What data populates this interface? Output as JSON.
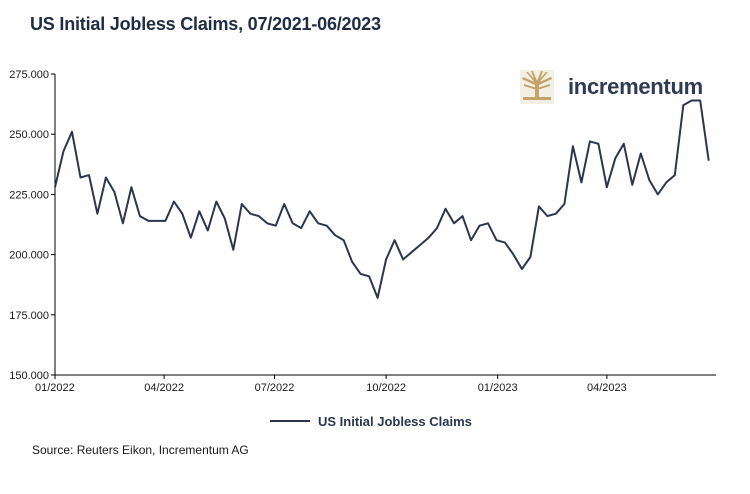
{
  "title": "US Initial Jobless Claims, 07/2021-06/2023",
  "source": "Source: Reuters Eikon, Incrementum AG",
  "logo": {
    "text": "incrementum",
    "icon": "tree-icon",
    "icon_color": "#c2a46a"
  },
  "chart_data": {
    "type": "line",
    "title": "US Initial Jobless Claims, 07/2021-06/2023",
    "xlabel": "",
    "ylabel": "",
    "ylim": [
      150000,
      275000
    ],
    "y_ticks": [
      150000,
      175000,
      200000,
      225000,
      250000,
      275000
    ],
    "y_tick_labels": [
      "150.000",
      "175.000",
      "200.000",
      "225.000",
      "250.000",
      "275.000"
    ],
    "x_range": [
      "2022-01-01",
      "2023-06-30"
    ],
    "x_ticks": [
      "2022-01-01",
      "2022-04-01",
      "2022-07-01",
      "2022-10-01",
      "2023-01-01",
      "2023-04-01"
    ],
    "x_tick_labels": [
      "01/2022",
      "04/2022",
      "07/2022",
      "10/2022",
      "01/2023",
      "04/2023"
    ],
    "grid": false,
    "legend_position": "bottom",
    "color": "#2a3650",
    "series": [
      {
        "name": "US Initial Jobless Claims",
        "x": [
          "2022-01-01",
          "2022-01-08",
          "2022-01-15",
          "2022-01-22",
          "2022-01-29",
          "2022-02-05",
          "2022-02-12",
          "2022-02-19",
          "2022-02-26",
          "2022-03-05",
          "2022-03-12",
          "2022-03-19",
          "2022-03-26",
          "2022-04-02",
          "2022-04-09",
          "2022-04-16",
          "2022-04-23",
          "2022-04-30",
          "2022-05-07",
          "2022-05-14",
          "2022-05-21",
          "2022-05-28",
          "2022-06-04",
          "2022-06-11",
          "2022-06-18",
          "2022-06-25",
          "2022-07-02",
          "2022-07-09",
          "2022-07-16",
          "2022-07-23",
          "2022-07-30",
          "2022-08-06",
          "2022-08-13",
          "2022-08-20",
          "2022-08-27",
          "2022-09-03",
          "2022-09-10",
          "2022-09-17",
          "2022-09-24",
          "2022-10-01",
          "2022-10-08",
          "2022-10-15",
          "2022-10-22",
          "2022-10-29",
          "2022-11-05",
          "2022-11-12",
          "2022-11-19",
          "2022-11-26",
          "2022-12-03",
          "2022-12-10",
          "2022-12-17",
          "2022-12-24",
          "2022-12-31",
          "2023-01-07",
          "2023-01-14",
          "2023-01-21",
          "2023-01-28",
          "2023-02-04",
          "2023-02-11",
          "2023-02-18",
          "2023-02-25",
          "2023-03-04",
          "2023-03-11",
          "2023-03-18",
          "2023-03-25",
          "2023-04-01",
          "2023-04-08",
          "2023-04-15",
          "2023-04-22",
          "2023-04-29",
          "2023-05-06",
          "2023-05-13",
          "2023-05-20",
          "2023-05-27",
          "2023-06-03",
          "2023-06-10",
          "2023-06-17",
          "2023-06-24"
        ],
        "values": [
          228000,
          243000,
          251000,
          232000,
          233000,
          217000,
          232000,
          226000,
          213000,
          228000,
          216000,
          214000,
          214000,
          214000,
          222000,
          217000,
          207000,
          218000,
          210000,
          222000,
          215000,
          202000,
          221000,
          217000,
          216000,
          213000,
          212000,
          221000,
          213000,
          211000,
          218000,
          213000,
          212000,
          208000,
          206000,
          197000,
          192000,
          191000,
          182000,
          198000,
          206000,
          198000,
          201000,
          204000,
          207000,
          211000,
          219000,
          213000,
          216000,
          206000,
          212000,
          213000,
          206000,
          205000,
          200000,
          194000,
          199000,
          220000,
          216000,
          217000,
          221000,
          245000,
          230000,
          247000,
          246000,
          228000,
          240000,
          246000,
          229000,
          242000,
          231000,
          225000,
          230000,
          233000,
          262000,
          264000,
          264000,
          239000
        ]
      }
    ]
  }
}
